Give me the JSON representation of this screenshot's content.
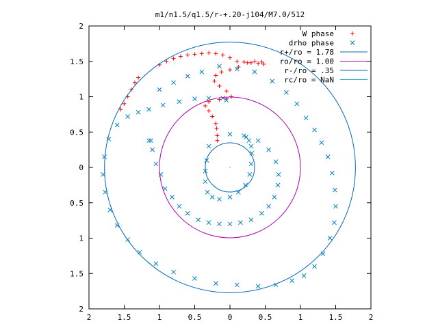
{
  "chart_data": {
    "type": "scatter",
    "title": "m1/n1.5/q1.5/r-+.20-j104/M7.0/512",
    "xlabel": "",
    "ylabel": "",
    "xlim": [
      -2,
      2
    ],
    "ylim": [
      -2,
      2
    ],
    "x_tick_labels": [
      "2",
      "1.5",
      "1",
      "0.5",
      "0",
      "0.5",
      "1",
      "1.5",
      "2"
    ],
    "y_tick_labels": [
      "2",
      "1.5",
      "1",
      "0.5",
      "0",
      "0.5",
      "1",
      "1.5",
      "2"
    ],
    "grid": false,
    "legend_position": "top-right",
    "series": [
      {
        "name": "W phase",
        "kind": "points",
        "marker": "plus",
        "color": "#ff0000",
        "x": [
          -1.55,
          -1.5,
          -1.45,
          -1.4,
          -1.35,
          -1.3,
          -1.0,
          -0.9,
          -0.8,
          -0.7,
          -0.6,
          -0.5,
          -0.4,
          -0.3,
          -0.2,
          -0.1,
          0.0,
          0.1,
          0.2,
          0.3,
          0.4,
          0.48,
          0.45,
          0.35,
          0.25,
          0.12,
          0.0,
          -0.12,
          -0.2,
          -0.22,
          -0.15,
          -0.05,
          0.02,
          -0.05,
          -0.15,
          -0.3,
          -0.35,
          -0.3,
          -0.25,
          -0.2,
          -0.19,
          -0.18,
          -0.18
        ],
        "y": [
          0.82,
          0.9,
          1.0,
          1.1,
          1.2,
          1.27,
          1.45,
          1.5,
          1.54,
          1.57,
          1.59,
          1.6,
          1.61,
          1.62,
          1.61,
          1.59,
          1.55,
          1.5,
          1.49,
          1.48,
          1.47,
          1.46,
          1.49,
          1.5,
          1.48,
          1.42,
          1.38,
          1.35,
          1.3,
          1.22,
          1.15,
          1.08,
          1.0,
          0.97,
          0.96,
          0.93,
          0.87,
          0.8,
          0.72,
          0.62,
          0.55,
          0.45,
          0.38
        ]
      },
      {
        "name": "drho phase",
        "kind": "points",
        "marker": "cross",
        "color": "#0080c0",
        "x": [
          -0.3,
          -0.33,
          -0.35,
          -0.35,
          -0.32,
          -0.25,
          -0.15,
          0.0,
          0.12,
          0.22,
          0.28,
          0.3,
          0.31,
          0.3,
          0.27,
          0.23,
          0.0,
          0.2,
          0.4,
          0.55,
          0.65,
          0.69,
          0.68,
          0.63,
          0.55,
          0.45,
          0.3,
          0.15,
          0.0,
          -0.15,
          -0.3,
          -0.45,
          -0.6,
          -0.72,
          -0.82,
          -0.92,
          -0.98,
          -1.05,
          -1.1,
          -1.15,
          -1.12,
          -1.0,
          -0.8,
          -0.6,
          -0.4,
          -0.15,
          0.1,
          0.35,
          0.6,
          0.8,
          0.95,
          1.08,
          1.2,
          1.3,
          1.39,
          1.45,
          1.49,
          1.5,
          1.48,
          1.42,
          1.32,
          1.2,
          1.05,
          0.88,
          0.65,
          0.4,
          0.1,
          -0.2,
          -0.5,
          -0.8,
          -1.05,
          -1.28,
          -1.45,
          -1.6,
          -1.7,
          -1.77,
          -1.8,
          -1.78,
          -1.72,
          -1.6,
          -1.45,
          -1.3,
          -1.15,
          -0.95,
          -0.72,
          -0.5,
          -0.3,
          -0.1,
          -0.05
        ],
        "y": [
          0.3,
          0.1,
          -0.05,
          -0.2,
          -0.35,
          -0.42,
          -0.45,
          -0.42,
          -0.35,
          -0.25,
          -0.1,
          0.05,
          0.2,
          0.3,
          0.38,
          0.43,
          0.47,
          0.45,
          0.38,
          0.25,
          0.08,
          -0.1,
          -0.25,
          -0.42,
          -0.55,
          -0.65,
          -0.74,
          -0.78,
          -0.8,
          -0.8,
          -0.78,
          -0.74,
          -0.65,
          -0.55,
          -0.42,
          -0.3,
          -0.1,
          0.05,
          0.25,
          0.38,
          0.38,
          1.1,
          1.2,
          1.29,
          1.35,
          1.43,
          1.39,
          1.35,
          1.22,
          1.06,
          0.9,
          0.7,
          0.53,
          0.35,
          0.15,
          -0.08,
          -0.32,
          -0.55,
          -0.78,
          -1.0,
          -1.22,
          -1.4,
          -1.53,
          -1.6,
          -1.66,
          -1.68,
          -1.66,
          -1.64,
          -1.57,
          -1.48,
          -1.36,
          -1.2,
          -1.02,
          -0.82,
          -0.6,
          -0.35,
          -0.1,
          0.15,
          0.4,
          0.6,
          0.72,
          0.78,
          0.82,
          0.88,
          0.93,
          0.97,
          0.98,
          0.98,
          0.95
        ]
      },
      {
        "name": "r+/ro = 1.78",
        "kind": "circle",
        "radius": 1.78,
        "color": "#0066bb"
      },
      {
        "name": "ro/ro = 1.00",
        "kind": "circle",
        "radius": 1.0,
        "color": "#aa00aa"
      },
      {
        "name": "r-/ro = .35",
        "kind": "circle",
        "radius": 0.35,
        "color": "#0066bb"
      },
      {
        "name": "rc/ro = NaN",
        "kind": "circle",
        "radius": null,
        "color": "#22aacc"
      }
    ]
  }
}
